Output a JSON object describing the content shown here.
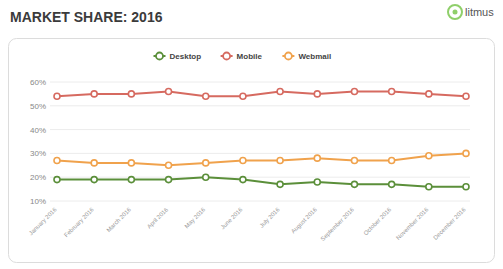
{
  "chart_data": {
    "type": "line",
    "title": "MARKET SHARE: 2016",
    "brand": "litmus",
    "categories": [
      "January 2016",
      "February 2016",
      "March 2016",
      "April 2016",
      "May 2016",
      "June 2016",
      "July 2016",
      "August 2016",
      "September 2016",
      "October 2016",
      "November 2016",
      "December 2016"
    ],
    "series": [
      {
        "name": "Desktop",
        "color": "#5b8f3a",
        "values": [
          19,
          19,
          19,
          19,
          20,
          19,
          17,
          18,
          17,
          17,
          16,
          16
        ]
      },
      {
        "name": "Mobile",
        "color": "#d66a60",
        "values": [
          54,
          55,
          55,
          56,
          54,
          54,
          56,
          55,
          56,
          56,
          55,
          54
        ]
      },
      {
        "name": "Webmail",
        "color": "#f0a24c",
        "values": [
          27,
          26,
          26,
          25,
          26,
          27,
          27,
          28,
          27,
          27,
          29,
          30
        ]
      }
    ],
    "ylim": [
      10,
      60
    ],
    "yticks": [
      {
        "value": 10,
        "label": "10%"
      },
      {
        "value": 20,
        "label": "20%"
      },
      {
        "value": 30,
        "label": "30%"
      },
      {
        "value": 40,
        "label": "40%"
      },
      {
        "value": 50,
        "label": "50%"
      },
      {
        "value": 60,
        "label": "60%"
      }
    ],
    "grid": true,
    "legend": "top",
    "marker": "circle"
  }
}
